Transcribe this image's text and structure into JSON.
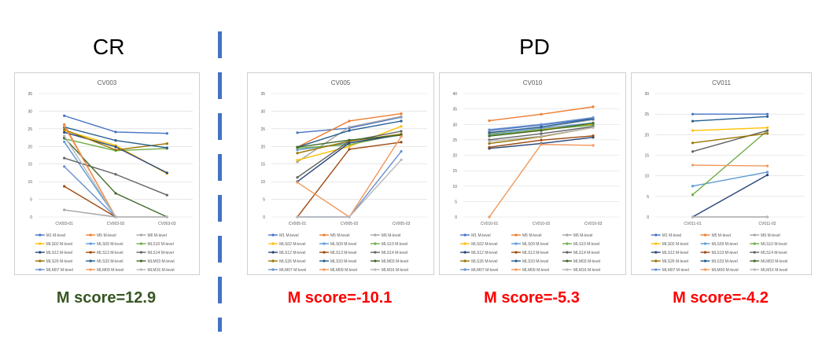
{
  "groups": [
    {
      "label": "CR"
    },
    {
      "label": "PD"
    }
  ],
  "scores": [
    {
      "text": "M score=12.9",
      "color": "#375623"
    },
    {
      "text": "M score=-10.1",
      "color": "#ff0000"
    },
    {
      "text": "M score=-5.3",
      "color": "#ff0000"
    },
    {
      "text": "M score=-4.2",
      "color": "#ff0000"
    }
  ],
  "series_meta": [
    {
      "name": "M1 M-level",
      "color": "#4472c4"
    },
    {
      "name": "M5 M-level",
      "color": "#ed7d31"
    },
    {
      "name": "M6 M-level",
      "color": "#a5a5a5"
    },
    {
      "name": "MLS02 M-level",
      "color": "#ffc000"
    },
    {
      "name": "MLS09 M-level",
      "color": "#5b9bd5"
    },
    {
      "name": "MLS10 M-level",
      "color": "#70ad47"
    },
    {
      "name": "MLS12 M-level",
      "color": "#264478"
    },
    {
      "name": "MLS13 M-level",
      "color": "#9e480e"
    },
    {
      "name": "MLS14 M-level",
      "color": "#636363"
    },
    {
      "name": "MLS26 M-level",
      "color": "#997300"
    },
    {
      "name": "MLS33 M-level",
      "color": "#255e91"
    },
    {
      "name": "MLM03 M-level",
      "color": "#43682b"
    },
    {
      "name": "MLM07 M-level",
      "color": "#698ed0"
    },
    {
      "name": "MLM09 M-level",
      "color": "#f1975a"
    },
    {
      "name": "MLM16 M-level",
      "color": "#b7b7b7"
    }
  ],
  "chart_data": [
    {
      "type": "line",
      "title": "CV003",
      "categories": [
        "CV003-01",
        "CV003-02",
        "CV003-03"
      ],
      "ylim": [
        0,
        35
      ],
      "yticks": [
        0,
        5,
        10,
        15,
        20,
        25,
        30,
        35
      ],
      "grid": true,
      "legend": "bottom",
      "series": [
        {
          "name": "M1 M-level",
          "values": [
            28.7,
            24.1,
            23.7
          ]
        },
        {
          "name": "M5 M-level",
          "values": [
            26.2,
            0,
            null
          ]
        },
        {
          "name": "M6 M-level",
          "values": [
            2,
            0,
            0
          ]
        },
        {
          "name": "MLS02 M-level",
          "values": [
            24.5,
            20.3,
            12.3
          ]
        },
        {
          "name": "MLS09 M-level",
          "values": [
            21.3,
            0,
            null
          ]
        },
        {
          "name": "MLS10 M-level",
          "values": [
            22.2,
            18.8,
            19.4
          ]
        },
        {
          "name": "MLS12 M-level",
          "values": [
            24.0,
            19.9,
            12.5
          ]
        },
        {
          "name": "MLS13 M-level",
          "values": [
            8.7,
            0,
            null
          ]
        },
        {
          "name": "MLS14 M-level",
          "values": [
            16.7,
            12.1,
            6.2
          ]
        },
        {
          "name": "MLS26 M-level",
          "values": [
            24.8,
            19.0,
            20.8
          ]
        },
        {
          "name": "MLS33 M-level",
          "values": [
            25.5,
            21.7,
            19.6
          ]
        },
        {
          "name": "MLM03 M-level",
          "values": [
            22.5,
            6.7,
            0
          ]
        },
        {
          "name": "MLM07 M-level",
          "values": [
            14.3,
            0,
            null
          ]
        },
        {
          "name": "MLM09 M-level",
          "values": [
            25.8,
            0,
            null
          ]
        },
        {
          "name": "MLM16 M-level",
          "values": [
            23.0,
            0,
            0
          ]
        }
      ]
    },
    {
      "type": "line",
      "title": "CV005",
      "categories": [
        "CV005-01",
        "CV005-02",
        "CV005-03"
      ],
      "ylim": [
        0,
        35
      ],
      "yticks": [
        0,
        5,
        10,
        15,
        20,
        25,
        30,
        35
      ],
      "grid": true,
      "legend": "bottom",
      "series": [
        {
          "name": "M1 M-level",
          "values": [
            23.9,
            25.2,
            28.3
          ]
        },
        {
          "name": "M5 M-level",
          "values": [
            19.8,
            27.2,
            29.3
          ]
        },
        {
          "name": "M6 M-level",
          "values": [
            15.6,
            25.5,
            28.5
          ]
        },
        {
          "name": "MLS02 M-level",
          "values": [
            16.1,
            20.0,
            25.7
          ]
        },
        {
          "name": "MLS09 M-level",
          "values": [
            19.0,
            21.0,
            23.3
          ]
        },
        {
          "name": "MLS10 M-level",
          "values": [
            19.5,
            20.5,
            23.5
          ]
        },
        {
          "name": "MLS12 M-level",
          "values": [
            10.0,
            21.0,
            23.3
          ]
        },
        {
          "name": "MLS13 M-level",
          "values": [
            0,
            19.2,
            21.2
          ]
        },
        {
          "name": "MLS14 M-level",
          "values": [
            11.2,
            21.5,
            24.3
          ]
        },
        {
          "name": "MLS26 M-level",
          "values": [
            18.1,
            21.5,
            23.5
          ]
        },
        {
          "name": "MLS33 M-level",
          "values": [
            19.8,
            24.5,
            27.2
          ]
        },
        {
          "name": "MLM03 M-level",
          "values": [
            19.8,
            21.8,
            23.2
          ]
        },
        {
          "name": "MLM07 M-level",
          "values": [
            0,
            0,
            18.6
          ]
        },
        {
          "name": "MLM09 M-level",
          "values": [
            9.8,
            0,
            22.8
          ]
        },
        {
          "name": "MLM16 M-level",
          "values": [
            0,
            0,
            16.2
          ]
        }
      ]
    },
    {
      "type": "line",
      "title": "CV010",
      "categories": [
        "CV010-01",
        "CV010-02",
        "CV010-03"
      ],
      "ylim": [
        0,
        40
      ],
      "yticks": [
        0,
        5,
        10,
        15,
        20,
        25,
        30,
        35,
        40
      ],
      "grid": true,
      "legend": "bottom",
      "series": [
        {
          "name": "M1 M-level",
          "values": [
            28.0,
            29.8,
            32.0
          ]
        },
        {
          "name": "M5 M-level",
          "values": [
            31.2,
            33.3,
            35.7
          ]
        },
        {
          "name": "M6 M-level",
          "values": [
            27.5,
            29.0,
            31.5
          ]
        },
        {
          "name": "MLS02 M-level",
          "values": [
            27.0,
            28.5,
            30.0
          ]
        },
        {
          "name": "MLS09 M-level",
          "values": [
            26.8,
            28.7,
            30.5
          ]
        },
        {
          "name": "MLS10 M-level",
          "values": [
            26.5,
            28.2,
            29.8
          ]
        },
        {
          "name": "MLS12 M-level",
          "values": [
            22.2,
            23.8,
            25.8
          ]
        },
        {
          "name": "MLS13 M-level",
          "values": [
            22.6,
            24.9,
            26.3
          ]
        },
        {
          "name": "MLS14 M-level",
          "values": [
            25.0,
            27.0,
            29.3
          ]
        },
        {
          "name": "MLS26 M-level",
          "values": [
            23.8,
            26.0,
            29.0
          ]
        },
        {
          "name": "MLS33 M-level",
          "values": [
            27.3,
            29.2,
            31.8
          ]
        },
        {
          "name": "MLM03 M-level",
          "values": [
            26.2,
            28.0,
            30.4
          ]
        },
        {
          "name": "MLM07 M-level",
          "values": [
            28.3,
            30.0,
            32.2
          ]
        },
        {
          "name": "MLM09 M-level",
          "values": [
            0,
            23.5,
            23.2
          ]
        },
        {
          "name": "MLM16 M-level",
          "values": [
            24.5,
            26.2,
            29.0
          ]
        }
      ]
    },
    {
      "type": "line",
      "title": "CV011",
      "categories": [
        "CV011-01",
        "CV011-02"
      ],
      "ylim": [
        0,
        30
      ],
      "yticks": [
        0,
        5,
        10,
        15,
        20,
        25,
        30
      ],
      "grid": true,
      "legend": "bottom",
      "series": [
        {
          "name": "M1 M-level",
          "values": [
            25.0,
            25.0
          ]
        },
        {
          "name": "M5 M-level",
          "values": [
            null,
            null
          ]
        },
        {
          "name": "M6 M-level",
          "values": [
            0,
            0
          ]
        },
        {
          "name": "MLS02 M-level",
          "values": [
            21.0,
            21.7
          ]
        },
        {
          "name": "MLS09 M-level",
          "values": [
            7.5,
            10.9
          ]
        },
        {
          "name": "MLS10 M-level",
          "values": [
            5.4,
            21.0
          ]
        },
        {
          "name": "MLS12 M-level",
          "values": [
            0,
            10.2
          ]
        },
        {
          "name": "MLS13 M-level",
          "values": [
            null,
            null
          ]
        },
        {
          "name": "MLS14 M-level",
          "values": [
            15.9,
            21.0
          ]
        },
        {
          "name": "MLS26 M-level",
          "values": [
            18.0,
            20.3
          ]
        },
        {
          "name": "MLS33 M-level",
          "values": [
            23.3,
            24.4
          ]
        },
        {
          "name": "MLM03 M-level",
          "values": [
            null,
            null
          ]
        },
        {
          "name": "MLM07 M-level",
          "values": [
            null,
            null
          ]
        },
        {
          "name": "MLM09 M-level",
          "values": [
            12.6,
            12.4
          ]
        },
        {
          "name": "MLM16 M-level",
          "values": [
            0,
            0
          ]
        }
      ]
    }
  ]
}
